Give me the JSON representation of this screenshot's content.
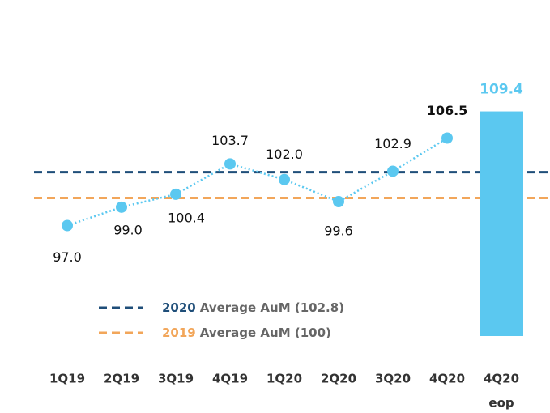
{
  "chart_data": {
    "type": "line",
    "categories": [
      "1Q19",
      "2Q19",
      "3Q19",
      "4Q19",
      "1Q20",
      "2Q20",
      "3Q20",
      "4Q20"
    ],
    "series": [
      {
        "color": "#5bc8f0",
        "values": [
          97.0,
          99.0,
          100.4,
          103.7,
          102.0,
          99.6,
          102.9,
          106.5
        ],
        "value_labels": [
          "97.0",
          "99.0",
          "100.4",
          "103.7",
          "102.0",
          "99.6",
          "102.9",
          "106.5"
        ]
      }
    ],
    "bar": {
      "category": "4Q20",
      "note": "eop",
      "value": 109.4,
      "value_label": "109.4",
      "color": "#5bc8f0"
    },
    "reference_lines": [
      {
        "value": 102.8,
        "color": "#1f4e79",
        "year": "2020",
        "label": "Average AuM (102.8)"
      },
      {
        "value": 100,
        "color": "#f2a65a",
        "year": "2019",
        "label": "Average AuM (100)"
      }
    ],
    "ylim": [
      85,
      112
    ]
  }
}
